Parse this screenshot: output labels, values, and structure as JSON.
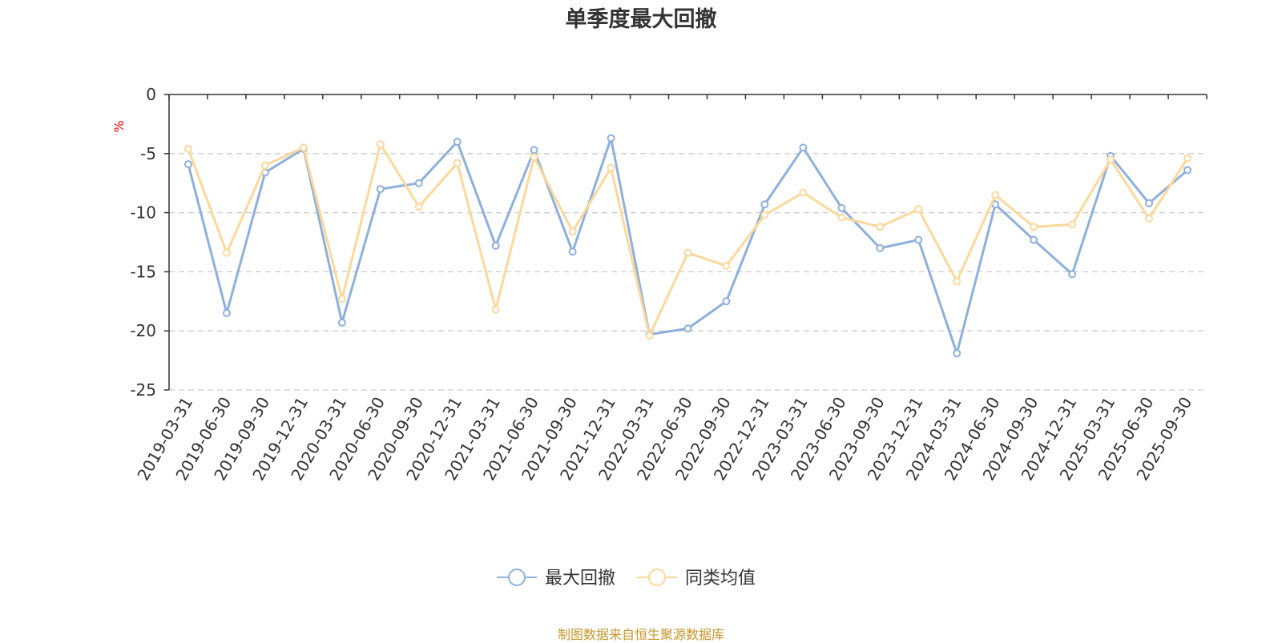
{
  "chart_data": {
    "type": "line",
    "title": "单季度最大回撤",
    "ylabel": "%",
    "ylim": [
      -25,
      0
    ],
    "yticks": [
      0,
      -5,
      -10,
      -15,
      -20,
      -25
    ],
    "grid": true,
    "legend_position": "bottom",
    "categories": [
      "2019-03-31",
      "2019-06-30",
      "2019-09-30",
      "2019-12-31",
      "2020-03-31",
      "2020-06-30",
      "2020-09-30",
      "2020-12-31",
      "2021-03-31",
      "2021-06-30",
      "2021-09-30",
      "2021-12-31",
      "2022-03-31",
      "2022-06-30",
      "2022-09-30",
      "2022-12-31",
      "2023-03-31",
      "2023-06-30",
      "2023-09-30",
      "2023-12-31",
      "2024-03-31",
      "2024-06-30",
      "2024-09-30",
      "2024-12-31",
      "2025-03-31",
      "2025-06-30",
      "2025-09-30"
    ],
    "series": [
      {
        "name": "最大回撤",
        "color": "#8eb0dc",
        "values": [
          -5.9,
          -18.5,
          -6.6,
          -4.6,
          -19.3,
          -8.0,
          -7.5,
          -4.0,
          -12.8,
          -4.7,
          -13.3,
          -3.7,
          -20.3,
          -19.8,
          -17.5,
          -9.3,
          -4.5,
          -9.6,
          -13.0,
          -12.3,
          -21.9,
          -9.3,
          -12.3,
          -15.2,
          -5.2,
          -9.2,
          -6.4
        ]
      },
      {
        "name": "同类均值",
        "color": "#fcd89a",
        "values": [
          -4.6,
          -13.4,
          -6.0,
          -4.5,
          -17.3,
          -4.2,
          -9.5,
          -5.8,
          -18.2,
          -5.3,
          -11.6,
          -6.2,
          -20.4,
          -13.4,
          -14.5,
          -10.2,
          -8.3,
          -10.4,
          -11.2,
          -9.7,
          -15.8,
          -8.5,
          -11.2,
          -11.0,
          -5.5,
          -10.5,
          -5.4
        ]
      }
    ]
  },
  "source": "制图数据来自恒生聚源数据库"
}
